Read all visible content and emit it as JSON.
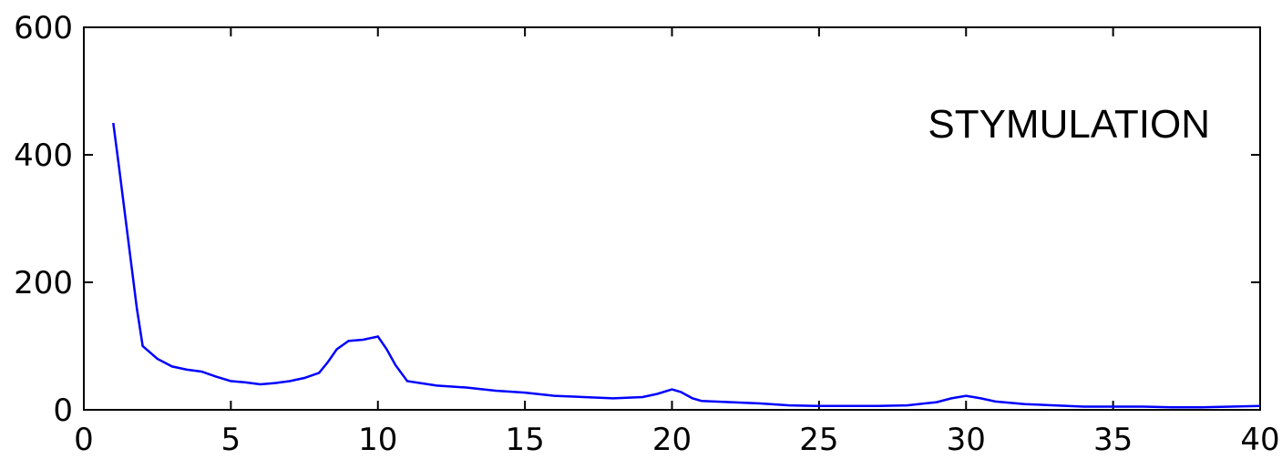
{
  "chart_data": {
    "type": "line",
    "xlim": [
      0,
      40
    ],
    "ylim": [
      0,
      600
    ],
    "x_ticks": [
      0,
      5,
      10,
      15,
      20,
      25,
      30,
      35,
      40
    ],
    "y_ticks": [
      0,
      200,
      400,
      600
    ],
    "x_tick_labels": [
      "0",
      "5",
      "10",
      "15",
      "20",
      "25",
      "30",
      "35",
      "40"
    ],
    "y_tick_labels": [
      "0",
      "200",
      "400",
      "600"
    ],
    "grid": false,
    "annotation": "STYMULATION",
    "series": [
      {
        "color": "#0000ff",
        "x": [
          1.0,
          1.2,
          1.5,
          1.8,
          2.0,
          2.5,
          3.0,
          3.5,
          4.0,
          4.5,
          5.0,
          5.5,
          6.0,
          6.5,
          7.0,
          7.5,
          8.0,
          8.3,
          8.6,
          9.0,
          9.5,
          10.0,
          10.3,
          10.6,
          11.0,
          12.0,
          13.0,
          14.0,
          15.0,
          16.0,
          17.0,
          18.0,
          19.0,
          19.5,
          20.0,
          20.3,
          20.7,
          21.0,
          22.0,
          23.0,
          24.0,
          25.0,
          26.0,
          27.0,
          28.0,
          29.0,
          29.5,
          30.0,
          30.5,
          31.0,
          32.0,
          33.0,
          34.0,
          35.0,
          36.0,
          37.0,
          38.0,
          39.0,
          40.0
        ],
        "y": [
          450,
          380,
          270,
          160,
          100,
          80,
          68,
          63,
          60,
          52,
          45,
          43,
          40,
          42,
          45,
          50,
          58,
          75,
          95,
          108,
          110,
          115,
          95,
          70,
          45,
          38,
          35,
          30,
          27,
          22,
          20,
          18,
          20,
          25,
          32,
          28,
          18,
          14,
          12,
          10,
          7,
          6,
          6,
          6,
          7,
          12,
          18,
          22,
          18,
          13,
          9,
          7,
          5,
          5,
          5,
          4,
          4,
          5,
          6
        ]
      }
    ]
  }
}
